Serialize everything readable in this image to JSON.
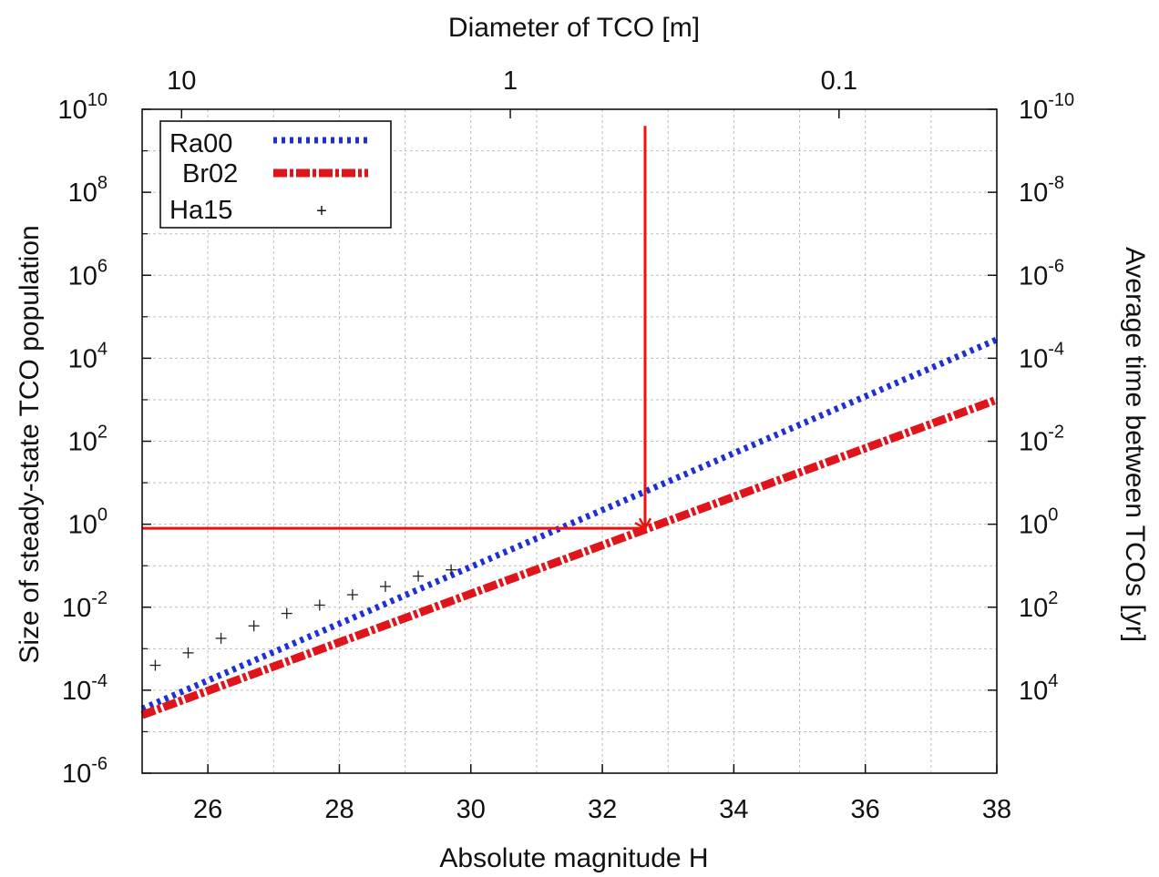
{
  "chart_data": {
    "type": "line",
    "title": "",
    "xlabel": "Absolute magnitude H",
    "ylabel": "Size of steady-state TCO population",
    "x2label": "Diameter of TCO [m]",
    "y2label": "Average time between TCOs [yr]",
    "xlim": [
      25,
      38
    ],
    "ylim_log10": [
      -6,
      10
    ],
    "y_scale": "log",
    "grid": true,
    "legend_position": "top-left",
    "x_ticks": [
      "26",
      "28",
      "30",
      "32",
      "34",
      "36",
      "38"
    ],
    "x_tick_values": [
      26,
      28,
      30,
      32,
      34,
      36,
      38
    ],
    "y_ticks": [
      {
        "base": "10",
        "exp": "-6",
        "log10": -6
      },
      {
        "base": "10",
        "exp": "-4",
        "log10": -4
      },
      {
        "base": "10",
        "exp": "-2",
        "log10": -2
      },
      {
        "base": "10",
        "exp": "0",
        "log10": 0
      },
      {
        "base": "10",
        "exp": "2",
        "log10": 2
      },
      {
        "base": "10",
        "exp": "4",
        "log10": 4
      },
      {
        "base": "10",
        "exp": "6",
        "log10": 6
      },
      {
        "base": "10",
        "exp": "8",
        "log10": 8
      },
      {
        "base": "10",
        "exp": "10",
        "log10": 10
      }
    ],
    "x2_ticks": [
      {
        "label": "10",
        "at_H": 25.6
      },
      {
        "label": "1",
        "at_H": 30.6
      },
      {
        "label": "0.1",
        "at_H": 35.6
      }
    ],
    "y2_ticks": [
      {
        "base": "10",
        "exp": "-10",
        "at_log10_pop": 10
      },
      {
        "base": "10",
        "exp": "-8",
        "at_log10_pop": 8
      },
      {
        "base": "10",
        "exp": "-6",
        "at_log10_pop": 6
      },
      {
        "base": "10",
        "exp": "-4",
        "at_log10_pop": 4
      },
      {
        "base": "10",
        "exp": "-2",
        "at_log10_pop": 2
      },
      {
        "base": "10",
        "exp": "0",
        "at_log10_pop": 0
      },
      {
        "base": "10",
        "exp": "2",
        "at_log10_pop": -2
      },
      {
        "base": "10",
        "exp": "4",
        "at_log10_pop": -4
      }
    ],
    "series": [
      {
        "name": "Ra00",
        "color": "#1f2fd6",
        "style": "dotted",
        "x": [
          25,
          38
        ],
        "y_log10": [
          -4.45,
          4.45
        ]
      },
      {
        "name": "Br02",
        "color": "#e0151c",
        "style": "dash-dot",
        "x": [
          25,
          38
        ],
        "y_log10": [
          -4.6,
          3.0
        ]
      },
      {
        "name": "Ha15",
        "color": "#222222",
        "style": "points",
        "x": [
          25.2,
          25.7,
          26.2,
          26.7,
          27.2,
          27.7,
          28.2,
          28.7,
          29.2,
          29.7
        ],
        "y_log10": [
          -3.4,
          -3.1,
          -2.75,
          -2.45,
          -2.15,
          -1.95,
          -1.7,
          -1.5,
          -1.25,
          -1.1
        ]
      }
    ],
    "annotations": [
      {
        "type": "arrow",
        "color": "#ee1111",
        "from": {
          "x": 25,
          "y_log10": -0.1
        },
        "to": {
          "x": 32.65,
          "y_log10": -0.1
        }
      },
      {
        "type": "arrow",
        "color": "#ee1111",
        "from": {
          "x": 32.65,
          "y_log10": 9.6
        },
        "to": {
          "x": 32.65,
          "y_log10": -0.1
        }
      }
    ]
  }
}
